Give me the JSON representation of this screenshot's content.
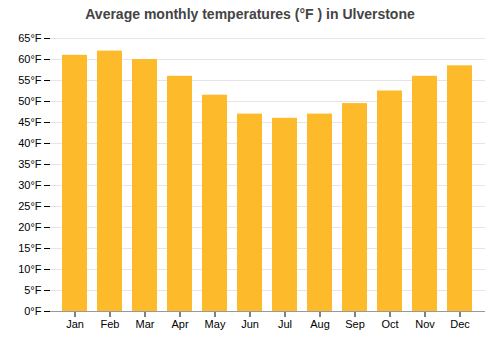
{
  "chart_data": {
    "type": "bar",
    "title": "Average monthly temperatures (°F ) in Ulverstone",
    "categories": [
      "Jan",
      "Feb",
      "Mar",
      "Apr",
      "May",
      "Jun",
      "Jul",
      "Aug",
      "Sep",
      "Oct",
      "Nov",
      "Dec"
    ],
    "values": [
      61.0,
      62.0,
      60.0,
      56.0,
      51.5,
      47.0,
      46.0,
      47.0,
      49.5,
      52.5,
      56.0,
      58.5
    ],
    "color": "#FDBA2B",
    "ylim": [
      0,
      65
    ],
    "yticks": [
      {
        "value": 0,
        "label": "0°F"
      },
      {
        "value": 5,
        "label": "5°F"
      },
      {
        "value": 10,
        "label": "10°F"
      },
      {
        "value": 15,
        "label": "15°F"
      },
      {
        "value": 20,
        "label": "20°F"
      },
      {
        "value": 25,
        "label": "25°F"
      },
      {
        "value": 30,
        "label": "30°F"
      },
      {
        "value": 35,
        "label": "35°F"
      },
      {
        "value": 40,
        "label": "40°F"
      },
      {
        "value": 45,
        "label": "45°F"
      },
      {
        "value": 50,
        "label": "50°F"
      },
      {
        "value": 55,
        "label": "55°F"
      },
      {
        "value": 60,
        "label": "60°F"
      },
      {
        "value": 65,
        "label": "65°F"
      }
    ],
    "grid": true
  }
}
